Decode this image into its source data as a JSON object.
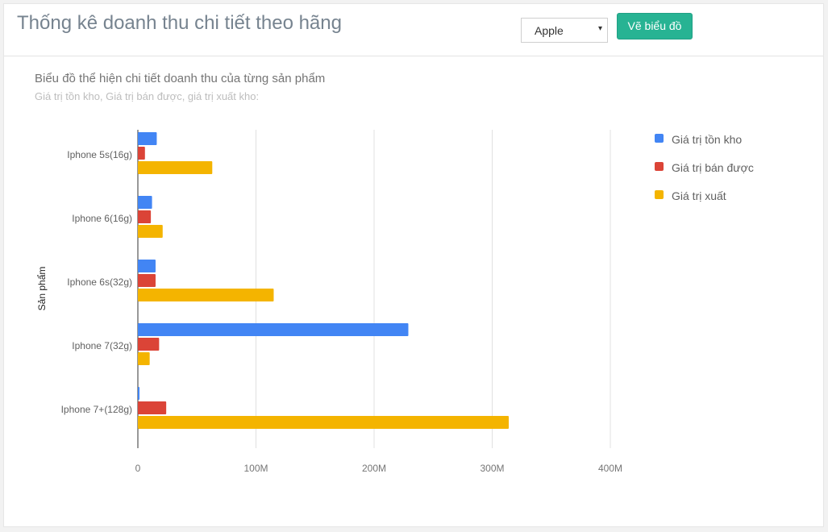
{
  "header": {
    "title": "Thống kê doanh thu chi tiết theo hãng",
    "brand_select": {
      "value": "Apple",
      "caret": "▾"
    },
    "draw_button_label": "Vẽ biểu đồ"
  },
  "chart_data": {
    "type": "bar",
    "orientation": "horizontal",
    "title": "Biểu đồ thể hiện chi tiết doanh thu của từng sản phẩm",
    "subtitle": "Giá trị tồn kho, Giá trị bán được, giá trị xuất kho:",
    "ylabel": "Sản phẩm",
    "xlabel": "",
    "categories": [
      "Iphone 5s(16g)",
      "Iphone 6(16g)",
      "Iphone 6s(32g)",
      "Iphone 7(32g)",
      "Iphone 7+(128g)"
    ],
    "series": [
      {
        "name": "Giá trị tồn kho",
        "color": "#4285f4",
        "values": [
          16,
          12,
          15,
          229,
          1
        ]
      },
      {
        "name": "Giá trị bán được",
        "color": "#db4437",
        "values": [
          6,
          11,
          15,
          18,
          24
        ]
      },
      {
        "name": "Giá trị xuất",
        "color": "#f4b400",
        "values": [
          63,
          21,
          115,
          10,
          314
        ]
      }
    ],
    "unit": "M",
    "xlim": [
      0,
      400
    ],
    "xticks": [
      {
        "value": 0,
        "label": "0"
      },
      {
        "value": 100,
        "label": "100M"
      },
      {
        "value": 200,
        "label": "200M"
      },
      {
        "value": 300,
        "label": "300M"
      },
      {
        "value": 400,
        "label": "400M"
      }
    ],
    "grid": true,
    "legend_position": "right"
  }
}
